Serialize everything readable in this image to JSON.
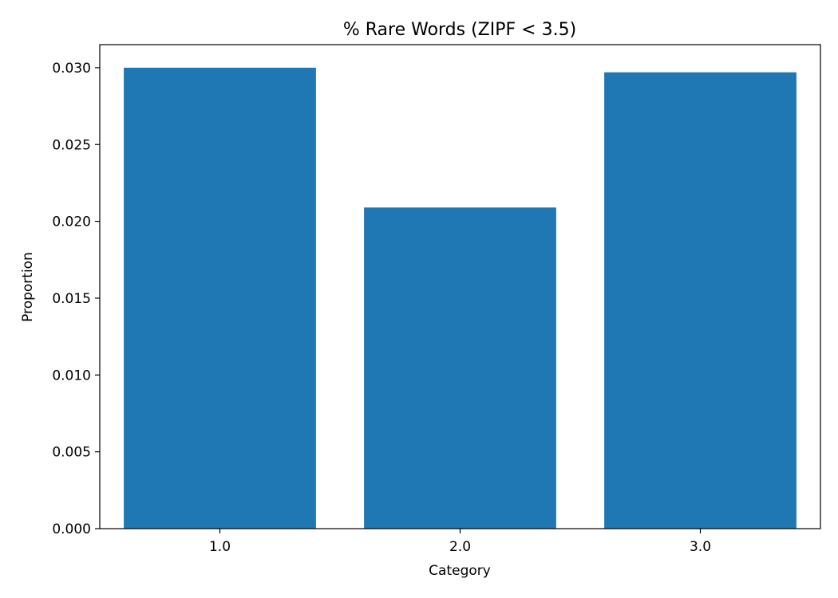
{
  "chart_data": {
    "type": "bar",
    "title": "% Rare Words (ZIPF < 3.5)",
    "xlabel": "Category",
    "ylabel": "Proportion",
    "categories": [
      "1.0",
      "2.0",
      "3.0"
    ],
    "values": [
      0.03,
      0.0209,
      0.0297
    ],
    "ylim": [
      0,
      0.0315
    ],
    "yticks": [
      "0.000",
      "0.005",
      "0.010",
      "0.015",
      "0.020",
      "0.025",
      "0.030"
    ],
    "grid": false,
    "bar_color": "#1f77b4"
  }
}
